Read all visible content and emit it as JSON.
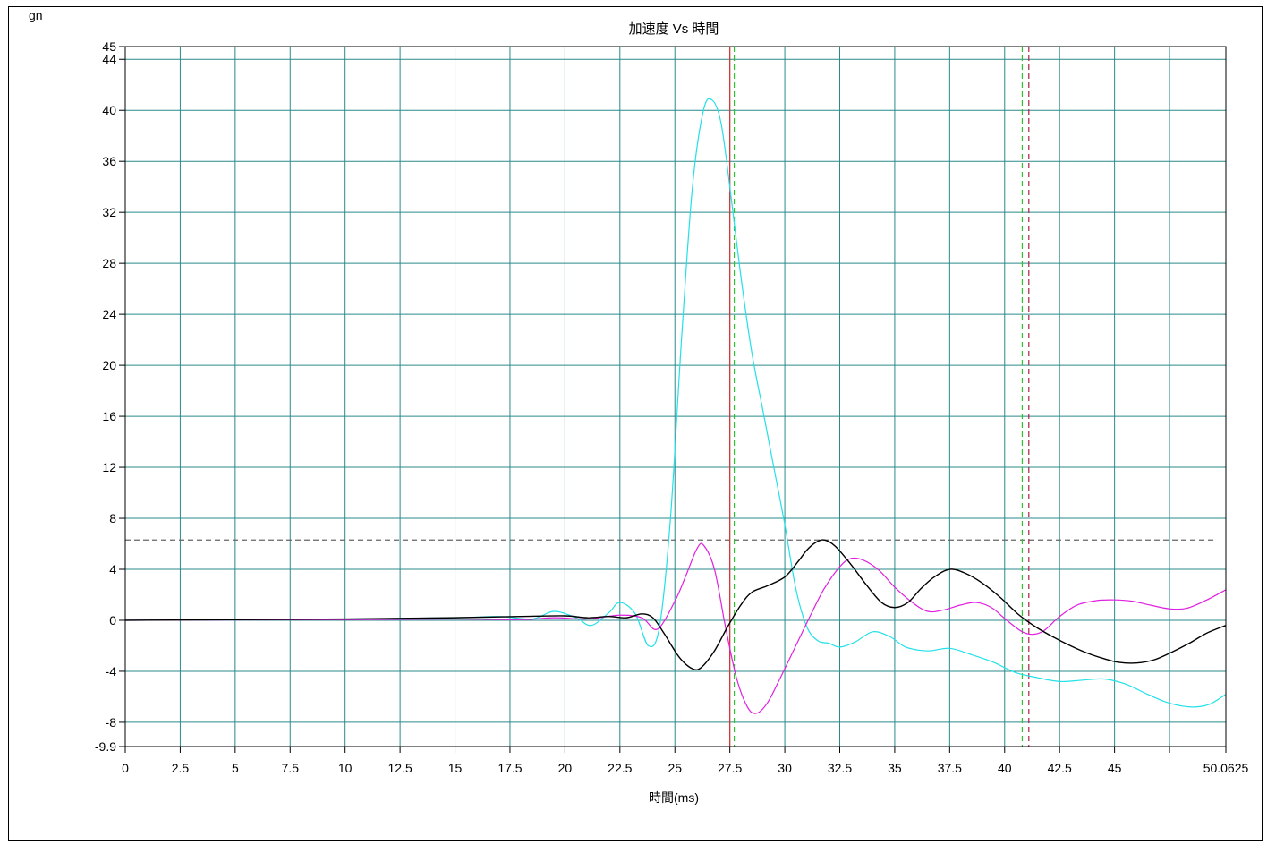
{
  "chart_data": {
    "type": "line",
    "title": "加速度 Vs 時間",
    "xlabel": "時間(ms)",
    "ylabel": "gn",
    "xlim": [
      0,
      50.0625
    ],
    "ylim": [
      -9.9,
      45
    ],
    "x_ticks": [
      0,
      2.5,
      5,
      7.5,
      10,
      12.5,
      15,
      17.5,
      20,
      22.5,
      25,
      27.5,
      30,
      32.5,
      35,
      37.5,
      40,
      42.5,
      45,
      47.5,
      50.0625
    ],
    "x_tick_labels": [
      "0",
      "2.5",
      "5",
      "7.5",
      "10",
      "12.5",
      "15",
      "17.5",
      "20",
      "22.5",
      "25",
      "27.5",
      "30",
      "32.5",
      "35",
      "37.5",
      "40",
      "42.5",
      "45",
      "",
      "50.0625"
    ],
    "y_ticks": [
      -9.9,
      -8,
      -4,
      0,
      4,
      8,
      12,
      16,
      20,
      24,
      28,
      32,
      36,
      40,
      44,
      45
    ],
    "y_tick_labels": [
      "-9.9",
      "-8",
      "-4",
      "0",
      "4",
      "8",
      "12",
      "16",
      "20",
      "24",
      "28",
      "32",
      "36",
      "40",
      "44",
      "45"
    ],
    "grid": true,
    "colors": {
      "grid": "#2a8a8a",
      "series_cyan": "#22e0e8",
      "series_magenta": "#e020e0",
      "series_black": "#000000",
      "hline": "#666666",
      "marker_red": "#e03030",
      "marker_green": "#30c030",
      "marker_darkred": "#b02040",
      "marker_orange": "#e06020"
    },
    "reference_lines": {
      "horizontal": [
        {
          "y": 6.3,
          "style": "dashed",
          "color": "#666666"
        }
      ],
      "vertical": [
        {
          "x": 27.5,
          "style": "solid",
          "color": "#e03030"
        },
        {
          "x": 27.7,
          "style": "dashed",
          "color": "#30c030"
        },
        {
          "x": 40.8,
          "style": "dashed",
          "color": "#30c030"
        },
        {
          "x": 41.1,
          "style": "dashed",
          "color": "#b02040"
        }
      ]
    },
    "series": [
      {
        "color": "#22e0e8",
        "x": [
          0,
          5,
          10,
          15,
          17,
          18.5,
          19.5,
          20.5,
          21.2,
          22,
          22.5,
          23.2,
          23.8,
          24.3,
          24.8,
          25.3,
          25.8,
          26.3,
          26.7,
          27.1,
          27.5,
          28,
          28.5,
          29,
          29.5,
          30,
          30.5,
          31,
          31.5,
          32,
          32.5,
          33.2,
          34,
          34.8,
          35.5,
          36.5,
          37.5,
          38.5,
          39.5,
          40.5,
          41.5,
          42.5,
          43.5,
          44.5,
          45.5,
          46.5,
          47.5,
          48.5,
          49.3,
          50.0625
        ],
        "y": [
          0,
          0.05,
          0.1,
          0.2,
          0.3,
          0.1,
          0.7,
          0.2,
          -0.4,
          0.6,
          1.4,
          0.5,
          -2.0,
          -0.5,
          8,
          22,
          34,
          40,
          40.8,
          39,
          34,
          27,
          21,
          16.5,
          12,
          7.5,
          2.5,
          -0.5,
          -1.6,
          -1.8,
          -2.1,
          -1.7,
          -0.9,
          -1.3,
          -2.1,
          -2.4,
          -2.2,
          -2.7,
          -3.3,
          -4.1,
          -4.5,
          -4.8,
          -4.7,
          -4.6,
          -5.0,
          -5.8,
          -6.5,
          -6.8,
          -6.6,
          -5.8
        ]
      },
      {
        "color": "#e020e0",
        "x": [
          0,
          5,
          10,
          15,
          18,
          19.5,
          21,
          22.5,
          23.5,
          24.2,
          25,
          25.5,
          26,
          26.3,
          26.8,
          27.3,
          27.8,
          28.3,
          28.7,
          29.2,
          29.8,
          30.5,
          31.2,
          31.8,
          32.5,
          33,
          33.6,
          34.3,
          35,
          35.8,
          36.5,
          37.2,
          38,
          38.7,
          39.4,
          40.1,
          40.8,
          41.3,
          41.8,
          42.5,
          43.3,
          44.2,
          45,
          45.8,
          46.6,
          47.5,
          48.3,
          49.2,
          50.0625
        ],
        "y": [
          0,
          0.03,
          0.05,
          0.1,
          0.05,
          0.2,
          0.1,
          0.4,
          0.2,
          -0.7,
          1.5,
          3.5,
          5.6,
          5.9,
          4.0,
          -0.5,
          -4.5,
          -6.8,
          -7.3,
          -6.5,
          -4.5,
          -2.0,
          0.5,
          2.5,
          4.2,
          4.85,
          4.7,
          3.9,
          2.6,
          1.4,
          0.7,
          0.8,
          1.2,
          1.4,
          1.0,
          0.0,
          -0.9,
          -1.1,
          -0.8,
          0.3,
          1.2,
          1.55,
          1.6,
          1.5,
          1.2,
          0.9,
          0.95,
          1.6,
          2.4
        ]
      },
      {
        "color": "#000000",
        "x": [
          0,
          5,
          10,
          15,
          18,
          20,
          21,
          22,
          22.8,
          23.5,
          24,
          24.5,
          25.2,
          25.8,
          26.2,
          26.8,
          27.4,
          28,
          28.5,
          29.2,
          30,
          30.6,
          31,
          31.4,
          31.8,
          32.3,
          33,
          33.7,
          34.4,
          35,
          35.6,
          36.2,
          36.8,
          37.5,
          38.2,
          39,
          39.8,
          40.6,
          41.4,
          42.2,
          43,
          43.8,
          44.5,
          45.2,
          46,
          46.8,
          47.6,
          48.4,
          49.2,
          50.0625
        ],
        "y": [
          0,
          0.05,
          0.1,
          0.2,
          0.3,
          0.35,
          0.2,
          0.3,
          0.2,
          0.5,
          0.2,
          -1.0,
          -2.9,
          -3.8,
          -3.7,
          -2.4,
          -0.5,
          1.2,
          2.2,
          2.7,
          3.4,
          4.6,
          5.5,
          6.1,
          6.3,
          5.8,
          4.4,
          2.8,
          1.4,
          1.0,
          1.4,
          2.5,
          3.4,
          4.0,
          3.7,
          2.9,
          1.8,
          0.5,
          -0.5,
          -1.3,
          -2.0,
          -2.6,
          -3.0,
          -3.3,
          -3.35,
          -3.1,
          -2.5,
          -1.8,
          -1.0,
          -0.4
        ]
      }
    ]
  }
}
